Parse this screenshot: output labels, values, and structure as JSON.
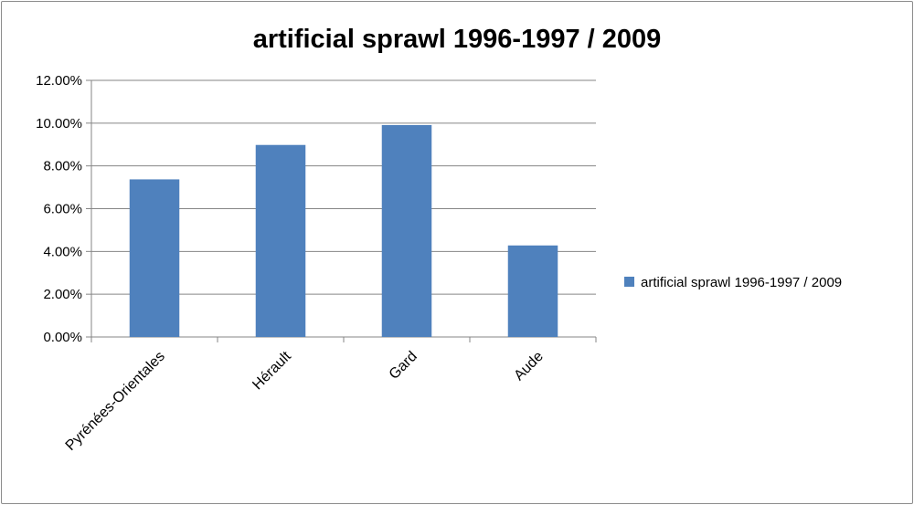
{
  "chart_data": {
    "type": "bar",
    "title": "artificial sprawl 1996-1997  / 2009",
    "categories": [
      "Pyrénées-Orientales",
      "Hérault",
      "Gard",
      "Aude"
    ],
    "series": [
      {
        "name": "artificial sprawl 1996-1997 / 2009",
        "values": [
          0.0737,
          0.0898,
          0.0991,
          0.0428
        ],
        "color": "#4F81BD"
      }
    ],
    "ylim": [
      0,
      0.12
    ],
    "yticks": [
      0,
      0.02,
      0.04,
      0.06,
      0.08,
      0.1,
      0.12
    ],
    "ytick_labels": [
      "0.00%",
      "2.00%",
      "4.00%",
      "6.00%",
      "8.00%",
      "10.00%",
      "12.00%"
    ],
    "xlabel": "",
    "ylabel": "",
    "grid": true,
    "legend": "right"
  }
}
